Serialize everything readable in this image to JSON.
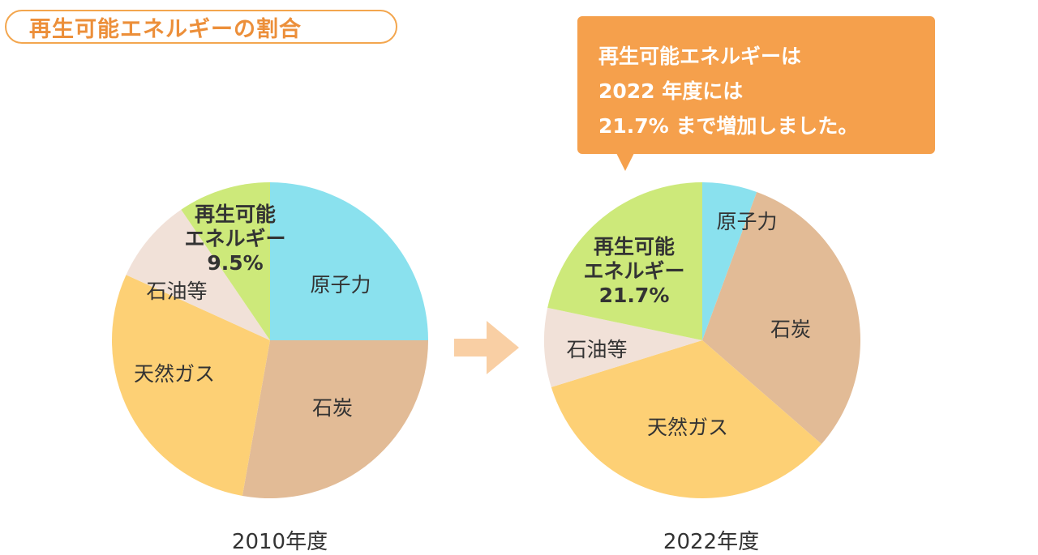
{
  "title": "再生可能エネルギーの割合",
  "callout": {
    "lines": [
      "再生可能エネルギーは",
      "2022 年度には",
      "21.7% まで増加しました。"
    ]
  },
  "colors": {
    "accent": "#f5a04c",
    "nuclear": "#8ae1ee",
    "coal": "#e2bb96",
    "gas": "#fdd075",
    "oil": "#f1e1d8",
    "renewable": "#cde97a",
    "arrow": "#f9cfa4"
  },
  "chart_data": [
    {
      "type": "pie",
      "title": "2010年度",
      "slices": [
        {
          "label": "原子力",
          "value": 25.0,
          "color": "#8ae1ee"
        },
        {
          "label": "石炭",
          "value": 27.8,
          "color": "#e2bb96"
        },
        {
          "label": "天然ガス",
          "value": 29.0,
          "color": "#fdd075"
        },
        {
          "label": "石油等",
          "value": 8.7,
          "color": "#f1e1d8"
        },
        {
          "label": "再生可能エネルギー",
          "value": 9.5,
          "color": "#cde97a",
          "label_lines": [
            "再生可能",
            "エネルギー",
            "9.5%"
          ]
        }
      ]
    },
    {
      "type": "pie",
      "title": "2022年度",
      "slices": [
        {
          "label": "原子力",
          "value": 5.6,
          "color": "#8ae1ee"
        },
        {
          "label": "石炭",
          "value": 30.8,
          "color": "#e2bb96"
        },
        {
          "label": "天然ガス",
          "value": 33.8,
          "color": "#fdd075"
        },
        {
          "label": "石油等",
          "value": 8.1,
          "color": "#f1e1d8"
        },
        {
          "label": "再生可能エネルギー",
          "value": 21.7,
          "color": "#cde97a",
          "label_lines": [
            "再生可能",
            "エネルギー",
            "21.7%"
          ]
        }
      ]
    }
  ]
}
